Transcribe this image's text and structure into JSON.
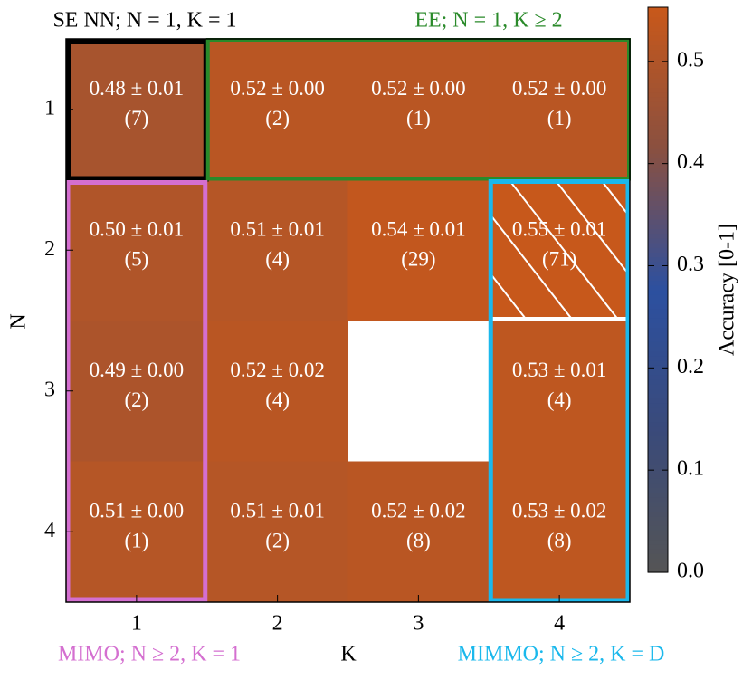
{
  "chart_data": {
    "type": "heatmap",
    "x_label": "K",
    "y_label": "N",
    "x_categories": [
      "1",
      "2",
      "3",
      "4"
    ],
    "y_categories": [
      "1",
      "2",
      "3",
      "4"
    ],
    "values": [
      [
        0.48,
        0.52,
        0.52,
        0.52
      ],
      [
        0.5,
        0.51,
        0.54,
        0.55
      ],
      [
        0.49,
        0.52,
        null,
        0.53
      ],
      [
        0.51,
        0.51,
        0.52,
        0.53
      ]
    ],
    "value_labels": [
      [
        "0.48 ± 0.01",
        "0.52 ± 0.00",
        "0.52 ± 0.00",
        "0.52 ± 0.00"
      ],
      [
        "0.50 ± 0.01",
        "0.51 ± 0.01",
        "0.54 ± 0.01",
        "0.55 ± 0.01"
      ],
      [
        "0.49 ± 0.00",
        "0.52 ± 0.02",
        null,
        "0.53 ± 0.01"
      ],
      [
        "0.51 ± 0.00",
        "0.51 ± 0.01",
        "0.52 ± 0.02",
        "0.53 ± 0.02"
      ]
    ],
    "count_labels": [
      [
        "(7)",
        "(2)",
        "(1)",
        "(1)"
      ],
      [
        "(5)",
        "(4)",
        "(29)",
        "(71)"
      ],
      [
        "(2)",
        "(4)",
        null,
        "(4)"
      ],
      [
        "(1)",
        "(2)",
        "(8)",
        "(8)"
      ]
    ],
    "colorbar_label": "Accuracy [0-1]",
    "clim": [
      0,
      0.553
    ],
    "cticks": [
      {
        "value": 0,
        "label": "0.0"
      },
      0.1,
      0.2,
      0.3,
      0.4,
      0.5
    ],
    "colormap": [
      "#555555",
      "#3a4a7a",
      "#2c50a0",
      "#8a5040",
      "#c8581a"
    ],
    "hatched_cell": [
      1,
      3
    ],
    "hatch_color": "#ffffff",
    "regions": [
      {
        "label": "SE NN; N = 1, K = 1",
        "color": "#000000"
      },
      {
        "label": "EE; N = 1, K ≥ 2",
        "color": "#2a8a2a"
      },
      {
        "label": "MIMO; N ≥ 2, K = 1",
        "color": "#d46fd0"
      },
      {
        "label": "MIMMO; N ≥ 2, K = D",
        "color": "#1ab8ec"
      }
    ]
  }
}
